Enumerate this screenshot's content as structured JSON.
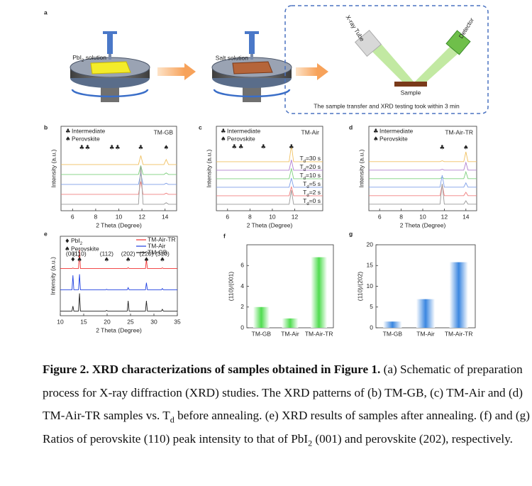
{
  "schematic": {
    "panel": "a",
    "coater1_label": [
      "PbI",
      "2",
      " solution"
    ],
    "coater2_label": "Salt solution",
    "tube": "X-ray Tube",
    "detector": "Detector",
    "sample": "Sample",
    "note": "The sample transfer and XRD testing took within 3 min"
  },
  "chart_data": [
    {
      "type": "line",
      "panel": "b",
      "title": "TM-GB",
      "xlabel": "2 Theta (Degree)",
      "ylabel": "Intensity (a.u.)",
      "xlim": [
        5,
        15
      ],
      "xticks": [
        6,
        8,
        10,
        12,
        14
      ],
      "legend_symbols": [
        {
          "symbol": "♣",
          "label": "Intermediate"
        },
        {
          "symbol": "♠",
          "label": "Perovskite"
        }
      ],
      "markers": [
        {
          "x": 6.8,
          "symbol": "♣"
        },
        {
          "x": 7.3,
          "symbol": "♣"
        },
        {
          "x": 9.4,
          "symbol": "♣"
        },
        {
          "x": 9.9,
          "symbol": "♣"
        },
        {
          "x": 11.9,
          "symbol": "♣"
        },
        {
          "x": 14.1,
          "symbol": "♠"
        }
      ],
      "series": [
        {
          "color": "#f0c060",
          "x": [
            5,
            11.7,
            11.9,
            12.1,
            13.9,
            14.1,
            14.3,
            15
          ],
          "values": [
            2,
            2,
            25,
            2,
            2,
            15,
            2,
            2
          ]
        },
        {
          "color": "#7fd07f",
          "x": [
            5,
            11.7,
            11.9,
            12.1,
            13.9,
            14.1,
            14.3,
            15
          ],
          "values": [
            2,
            2,
            25,
            2,
            2,
            6,
            2,
            2
          ]
        },
        {
          "color": "#7f9fe8",
          "x": [
            5,
            11.7,
            11.9,
            12.1,
            13.9,
            14.1,
            14.3,
            15
          ],
          "values": [
            2,
            2,
            30,
            2,
            2,
            5,
            2,
            2
          ]
        },
        {
          "color": "#f08080",
          "x": [
            5,
            11.7,
            11.9,
            12.1,
            13.9,
            14.1,
            14.3,
            15
          ],
          "values": [
            2,
            2,
            35,
            2,
            2,
            5,
            2,
            2
          ]
        },
        {
          "color": "#999999",
          "x": [
            5,
            11.7,
            11.9,
            12.1,
            13.9,
            14.1,
            14.3,
            15
          ],
          "values": [
            2,
            2,
            100,
            2,
            2,
            6,
            2,
            2
          ]
        }
      ]
    },
    {
      "type": "line",
      "panel": "c",
      "title": "TM-Air",
      "xlabel": "2 Theta (Degree)",
      "ylabel": "Intensity (a.u.)",
      "xlim": [
        5,
        14.5
      ],
      "xticks": [
        6,
        8,
        10,
        12
      ],
      "series_labels": "curve",
      "legend_symbols": [
        {
          "symbol": "♣",
          "label": "Intermediate"
        },
        {
          "symbol": "♠",
          "label": "Perovskite"
        }
      ],
      "markers": [
        {
          "x": 6.6,
          "symbol": "♣"
        },
        {
          "x": 7.2,
          "symbol": "♣"
        },
        {
          "x": 9.2,
          "symbol": "♣"
        },
        {
          "x": 11.7,
          "symbol": "♣"
        }
      ],
      "series": [
        {
          "name": [
            "T",
            "d",
            "=30 s"
          ],
          "color": "#f0c060",
          "x": [
            5,
            11.5,
            11.7,
            11.9,
            14.5
          ],
          "values": [
            3,
            3,
            70,
            3,
            3
          ]
        },
        {
          "name": [
            "T",
            "d",
            "=20 s"
          ],
          "color": "#b080d0",
          "x": [
            5,
            11.5,
            11.7,
            11.9,
            14.5
          ],
          "values": [
            3,
            3,
            45,
            3,
            3
          ]
        },
        {
          "name": [
            "T",
            "d",
            "=10 s"
          ],
          "color": "#7fd07f",
          "x": [
            5,
            11.5,
            11.7,
            11.9,
            14.5
          ],
          "values": [
            3,
            3,
            45,
            3,
            3
          ]
        },
        {
          "name": [
            "T",
            "d",
            "=5 s"
          ],
          "color": "#7f9fe8",
          "x": [
            5,
            11.5,
            11.7,
            11.9,
            14.5
          ],
          "values": [
            3,
            3,
            40,
            3,
            3
          ]
        },
        {
          "name": [
            "T",
            "d",
            "=2 s"
          ],
          "color": "#f08080",
          "x": [
            5,
            11.5,
            11.7,
            11.9,
            14.5
          ],
          "values": [
            3,
            3,
            40,
            3,
            3
          ]
        },
        {
          "name": [
            "T",
            "d",
            "=0 s"
          ],
          "color": "#999999",
          "x": [
            5,
            11.5,
            11.7,
            11.9,
            14.5
          ],
          "values": [
            3,
            3,
            60,
            3,
            3
          ]
        }
      ]
    },
    {
      "type": "line",
      "panel": "d",
      "title": "TM-Air-TR",
      "xlabel": "2 Theta (Degree)",
      "ylabel": "Intensity (a.u.)",
      "xlim": [
        5,
        15
      ],
      "xticks": [
        6,
        8,
        10,
        12,
        14
      ],
      "legend_symbols": [
        {
          "symbol": "♣",
          "label": "Intermediate"
        },
        {
          "symbol": "♠",
          "label": "Perovskite"
        }
      ],
      "markers": [
        {
          "x": 11.8,
          "symbol": "♣"
        },
        {
          "x": 14,
          "symbol": "♠"
        }
      ],
      "series": [
        {
          "color": "#f0c060",
          "x": [
            5,
            11.6,
            11.8,
            12,
            13.8,
            14,
            14.2,
            15
          ],
          "values": [
            2,
            2,
            4,
            2,
            2,
            25,
            2,
            2
          ]
        },
        {
          "color": "#b080d0",
          "x": [
            5,
            11.6,
            11.8,
            12,
            13.8,
            14,
            14.2,
            15
          ],
          "values": [
            2,
            2,
            4,
            2,
            2,
            20,
            2,
            2
          ]
        },
        {
          "color": "#7fd07f",
          "x": [
            5,
            11.6,
            11.8,
            12,
            13.8,
            14,
            14.2,
            15
          ],
          "values": [
            2,
            2,
            5,
            2,
            2,
            18,
            2,
            2
          ]
        },
        {
          "color": "#7f9fe8",
          "x": [
            5,
            11.6,
            11.8,
            12,
            13.8,
            14,
            14.2,
            15
          ],
          "values": [
            2,
            2,
            30,
            2,
            2,
            12,
            2,
            2
          ]
        },
        {
          "color": "#f08080",
          "x": [
            5,
            11.6,
            11.8,
            12,
            13.8,
            14,
            14.2,
            15
          ],
          "values": [
            2,
            2,
            28,
            2,
            2,
            10,
            2,
            2
          ]
        },
        {
          "color": "#999999",
          "x": [
            5,
            11.6,
            11.8,
            12,
            13.8,
            14,
            14.2,
            15
          ],
          "values": [
            2,
            2,
            50,
            2,
            2,
            10,
            2,
            2
          ]
        }
      ]
    },
    {
      "type": "line",
      "panel": "e",
      "xlabel": "2 Theta (Degree)",
      "ylabel": "Intensity (a.u.)",
      "xlim": [
        10,
        35
      ],
      "xticks": [
        10,
        15,
        20,
        25,
        30,
        35
      ],
      "legend": "upper right",
      "legend_symbols": [
        {
          "symbol": "♦",
          "label": [
            "PbI",
            "2"
          ]
        },
        {
          "symbol": "♠",
          "label": "Perovskite"
        }
      ],
      "markers": [
        {
          "x": 12.7,
          "symbol": "♦"
        },
        {
          "x": 14.1,
          "symbol": "♠"
        },
        {
          "x": 19.9,
          "symbol": "♠"
        },
        {
          "x": 24.5,
          "symbol": "♠"
        },
        {
          "x": 28.4,
          "symbol": "♠"
        },
        {
          "x": 31.8,
          "symbol": "♠"
        }
      ],
      "annotations": [
        {
          "x": 12.7,
          "label": "(001)"
        },
        {
          "x": 14.1,
          "label": "(110)"
        },
        {
          "x": 19.9,
          "label": "(112)"
        },
        {
          "x": 24.5,
          "label": "(202)"
        },
        {
          "x": 28.4,
          "label": "(220)"
        },
        {
          "x": 31.8,
          "label": "(310)"
        }
      ],
      "series": [
        {
          "name": "TM-Air-TR",
          "color": "#f03030",
          "x": [
            10,
            12.5,
            12.7,
            12.9,
            13.9,
            14.1,
            14.3,
            19.7,
            19.9,
            20.1,
            24.3,
            24.5,
            24.7,
            28.2,
            28.4,
            28.6,
            31.6,
            31.8,
            32,
            35
          ],
          "values": [
            2,
            2,
            4,
            2,
            2,
            90,
            2,
            2,
            2,
            2,
            2,
            6,
            2,
            2,
            45,
            2,
            2,
            5,
            2,
            2
          ]
        },
        {
          "name": "TM-Air",
          "color": "#2040e0",
          "x": [
            10,
            12.5,
            12.7,
            12.9,
            13.9,
            14.1,
            14.3,
            19.7,
            19.9,
            20.1,
            24.3,
            24.5,
            24.7,
            28.2,
            28.4,
            28.6,
            31.6,
            31.8,
            32,
            35
          ],
          "values": [
            2,
            2,
            70,
            2,
            2,
            75,
            2,
            2,
            4,
            2,
            2,
            12,
            2,
            2,
            35,
            2,
            2,
            8,
            2,
            2
          ]
        },
        {
          "name": "TM-GB",
          "color": "#222222",
          "x": [
            10,
            12.5,
            12.7,
            12.9,
            13.9,
            14.1,
            14.3,
            19.7,
            19.9,
            20.1,
            24.3,
            24.5,
            24.7,
            28.2,
            28.4,
            28.6,
            31.6,
            31.8,
            32,
            35
          ],
          "values": [
            2,
            2,
            25,
            2,
            2,
            85,
            2,
            2,
            5,
            2,
            2,
            50,
            2,
            2,
            50,
            2,
            2,
            10,
            2,
            2
          ]
        }
      ]
    },
    {
      "type": "bar",
      "panel": "f",
      "ylabel": "(110)/(001)",
      "categories": [
        "TM-GB",
        "TM-Air",
        "TM-Air-TR"
      ],
      "values": [
        2.0,
        0.9,
        6.8
      ],
      "color": "#4fdc4f",
      "ylim": [
        0,
        8
      ],
      "yticks": [
        0,
        2,
        4,
        6
      ]
    },
    {
      "type": "bar",
      "panel": "g",
      "ylabel": "(110)/(202)",
      "categories": [
        "TM-GB",
        "TM-Air",
        "TM-Air-TR"
      ],
      "values": [
        1.5,
        6.9,
        15.8
      ],
      "color": "#3a86e0",
      "ylim": [
        0,
        20
      ],
      "yticks": [
        0,
        5,
        10,
        15,
        20
      ]
    }
  ],
  "caption": [
    {
      "text": "Figure 2. XRD characterizations of samples obtained in Figure 1.",
      "style": "bold"
    },
    {
      "text": " (a) Schematic of preparation process for X-ray diffraction (XRD) studies. The XRD patterns of (b) TM-GB, (c) TM-Air and (d) TM-Air-TR samples vs. T"
    },
    {
      "text": "d",
      "style": "sub"
    },
    {
      "text": " before annealing. (e) XRD results of samples after annealing. (f) and (g) Ratios of perovskite (110) peak intensity to that of PbI"
    },
    {
      "text": "2",
      "style": "sub"
    },
    {
      "text": " (001) and perovskite (202), respectively."
    }
  ]
}
